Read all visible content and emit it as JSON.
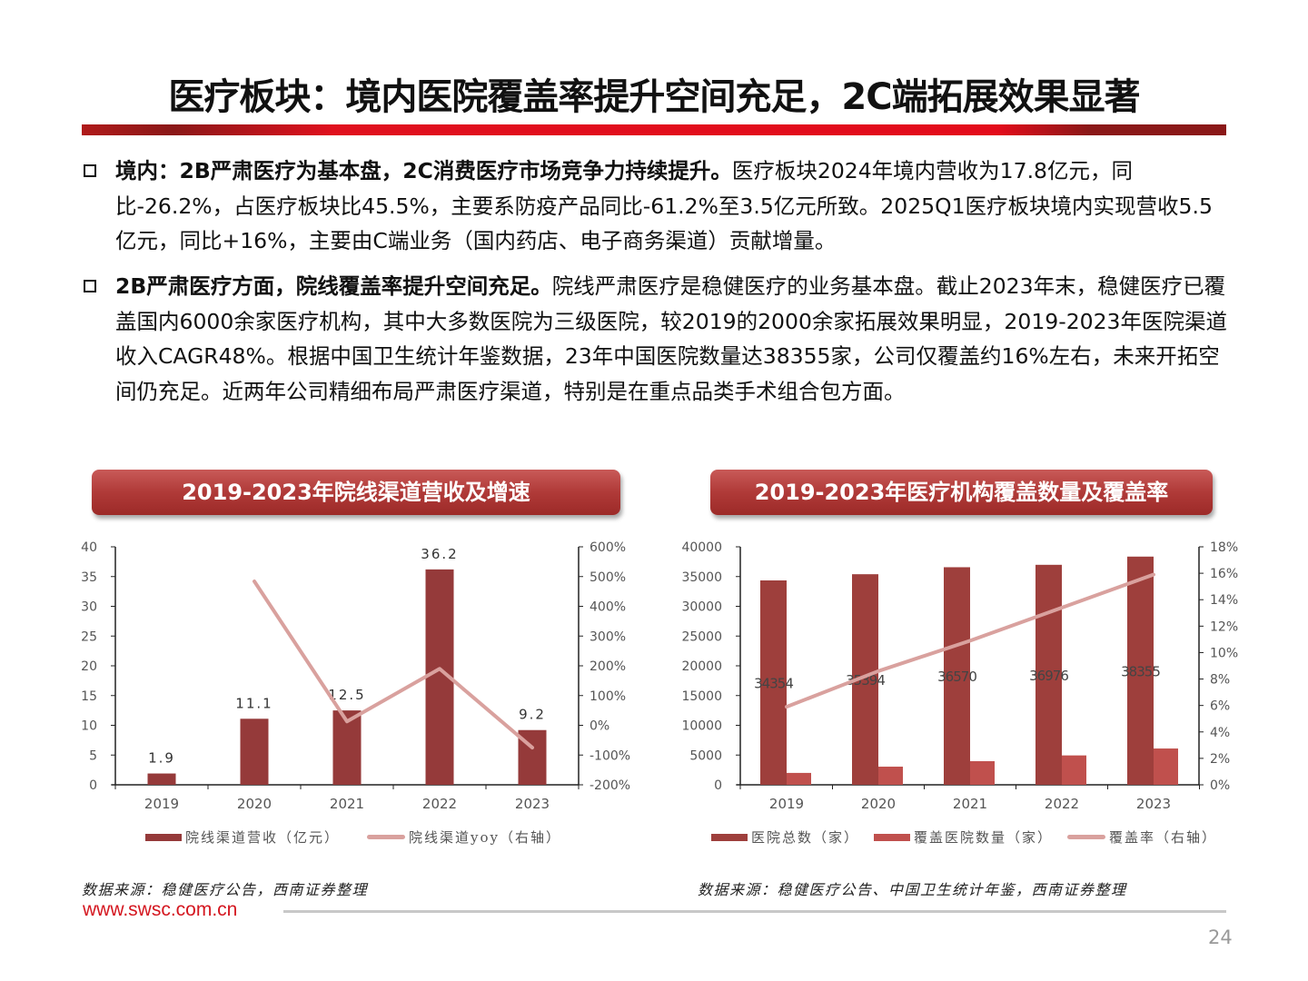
{
  "header": {
    "title": "医疗板块：境内医院覆盖率提升空间充足，2C端拓展效果显著"
  },
  "bullets": [
    {
      "bold": "境内：2B严肃医疗为基本盘，2C消费医疗市场竞争力持续提升。",
      "text": "医疗板块2024年境内营收为17.8亿元，同比-26.2%，占医疗板块比45.5%，主要系防疫产品同比-61.2%至3.5亿元所致。2025Q1医疗板块境内实现营收5.5亿元，同比+16%，主要由C端业务（国内药店、电子商务渠道）贡献增量。"
    },
    {
      "bold": "2B严肃医疗方面，院线覆盖率提升空间充足。",
      "text": "院线严肃医疗是稳健医疗的业务基本盘。截止2023年末，稳健医疗已覆盖国内6000余家医疗机构，其中大多数医院为三级医院，较2019的2000余家拓展效果明显，2019-2023年医院渠道收入CAGR48%。根据中国卫生统计年鉴数据，23年中国医院数量达38355家，公司仅覆盖约16%左右，未来开拓空间仍充足。近两年公司精细布局严肃医疗渠道，特别是在重点品类手术组合包方面。"
    }
  ],
  "colors": {
    "bar_dark": "#953a3a",
    "bar_dark2": "#9e3f3c",
    "bar_light": "#c0504d",
    "line": "#d9a19e",
    "brand_red": "#d4161f"
  },
  "chart_data": [
    {
      "type": "bar+line",
      "title": "2019-2023年院线渠道营收及增速",
      "categories": [
        "2019",
        "2020",
        "2021",
        "2022",
        "2023"
      ],
      "series": [
        {
          "name": "院线渠道营收（亿元）",
          "type": "bar",
          "axis": "left",
          "values": [
            1.9,
            11.1,
            12.5,
            36.2,
            9.2
          ],
          "labels": [
            "1.9",
            "11.1",
            "12.5",
            "36.2",
            "9.2"
          ]
        },
        {
          "name": "院线渠道yoy（右轴）",
          "type": "line",
          "axis": "right",
          "values": [
            null,
            484,
            13,
            190,
            -75
          ]
        }
      ],
      "ylim": [
        0,
        40
      ],
      "yticks": [
        "0",
        "5",
        "10",
        "15",
        "20",
        "25",
        "30",
        "35",
        "40"
      ],
      "y2lim": [
        -200,
        600
      ],
      "y2ticks": [
        "-200%",
        "-100%",
        "0%",
        "100%",
        "200%",
        "300%",
        "400%",
        "500%",
        "600%"
      ],
      "legend": "bottom",
      "source": "数据来源：稳健医疗公告，西南证券整理"
    },
    {
      "type": "bar+line",
      "title": "2019-2023年医疗机构覆盖数量及覆盖率",
      "categories": [
        "2019",
        "2020",
        "2021",
        "2022",
        "2023"
      ],
      "series": [
        {
          "name": "医院总数（家）",
          "type": "bar",
          "axis": "left",
          "values": [
            34354,
            35394,
            36570,
            36976,
            38355
          ],
          "labels": [
            "34354",
            "35394",
            "36570",
            "36976",
            "38355"
          ]
        },
        {
          "name": "覆盖医院数量（家）",
          "type": "bar",
          "axis": "left",
          "values": [
            2000,
            3050,
            3970,
            4940,
            6100
          ]
        },
        {
          "name": "覆盖率（右轴）",
          "type": "line",
          "axis": "right",
          "values": [
            5.9,
            8.6,
            10.9,
            13.4,
            15.9
          ]
        }
      ],
      "ylim": [
        0,
        40000
      ],
      "yticks": [
        "0",
        "5000",
        "10000",
        "15000",
        "20000",
        "25000",
        "30000",
        "35000",
        "40000"
      ],
      "y2lim": [
        0,
        18
      ],
      "y2ticks": [
        "0%",
        "2%",
        "4%",
        "6%",
        "8%",
        "10%",
        "12%",
        "14%",
        "16%",
        "18%"
      ],
      "legend": "bottom",
      "source": "数据来源：稳健医疗公告、中国卫生统计年鉴，西南证券整理"
    }
  ],
  "footer": {
    "site": "www.swsc.com.cn",
    "page": "24"
  }
}
